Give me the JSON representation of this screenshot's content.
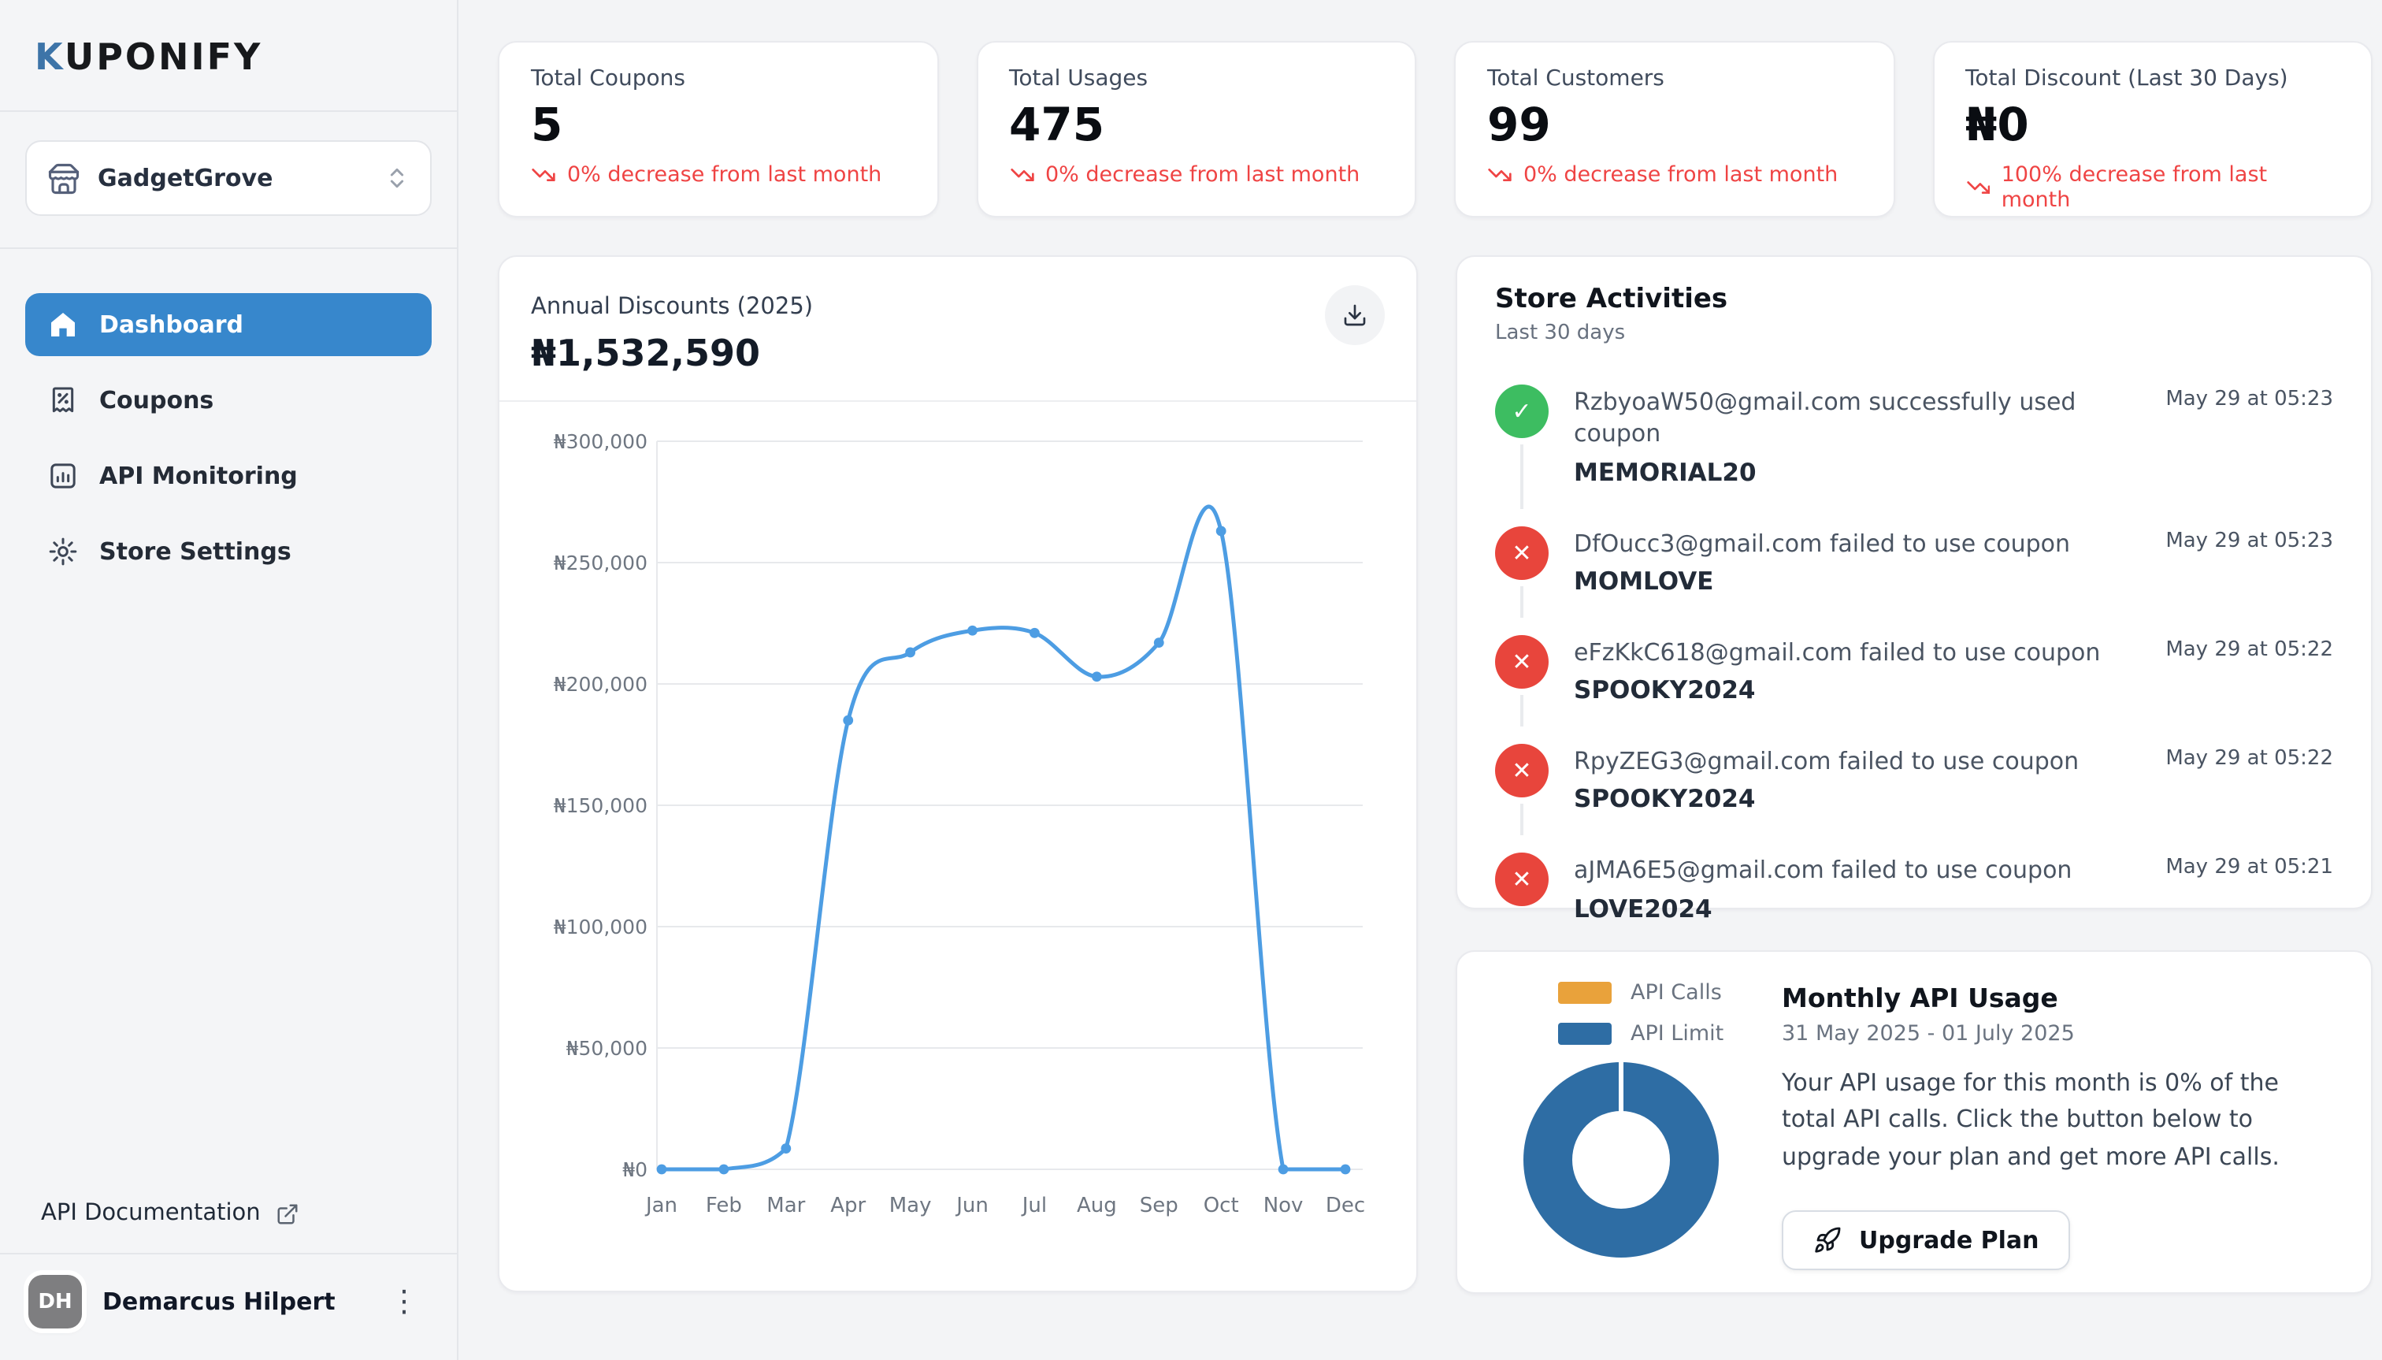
{
  "brand": {
    "logo_first": "K",
    "logo_rest": "UPONIFY"
  },
  "sidebar": {
    "store": {
      "name": "GadgetGrove"
    },
    "nav": [
      {
        "label": "Dashboard",
        "active": true
      },
      {
        "label": "Coupons",
        "active": false
      },
      {
        "label": "API Monitoring",
        "active": false
      },
      {
        "label": "Store Settings",
        "active": false
      }
    ],
    "api_docs_label": "API Documentation",
    "user": {
      "initials": "DH",
      "name": "Demarcus Hilpert"
    }
  },
  "stats": [
    {
      "label": "Total Coupons",
      "value": "5",
      "delta": "0% decrease from last month"
    },
    {
      "label": "Total Usages",
      "value": "475",
      "delta": "0% decrease from last month"
    },
    {
      "label": "Total Customers",
      "value": "99",
      "delta": "0% decrease from last month"
    },
    {
      "label": "Total Discount (Last 30 Days)",
      "value": "₦0",
      "delta": "100% decrease from last month"
    }
  ],
  "chart_card": {
    "title": "Annual Discounts (2025)",
    "total": "₦1,532,590"
  },
  "chart_data": {
    "type": "line",
    "title": "Annual Discounts (2025)",
    "x": [
      "Jan",
      "Feb",
      "Mar",
      "Apr",
      "May",
      "Jun",
      "Jul",
      "Aug",
      "Sep",
      "Oct",
      "Nov",
      "Dec"
    ],
    "series": [
      {
        "name": "Annual Discounts",
        "values": [
          0,
          0,
          8590,
          185000,
          213000,
          222000,
          221000,
          203000,
          217000,
          263000,
          0,
          0
        ]
      }
    ],
    "total_label": "₦1,532,590",
    "ylim": [
      0,
      300000
    ],
    "ytick_step": 50000,
    "ytick_prefix": "₦",
    "grid": true,
    "line_color": "#4D9DE3"
  },
  "activities": {
    "title": "Store Activities",
    "subtitle": "Last 30 days",
    "items": [
      {
        "status": "success",
        "text": "RzbyoaW50@gmail.com successfully used coupon",
        "code": "MEMORIAL20",
        "time": "May 29 at 05:23"
      },
      {
        "status": "fail",
        "text": "DfOucc3@gmail.com failed to use coupon",
        "code": "MOMLOVE",
        "time": "May 29 at 05:23"
      },
      {
        "status": "fail",
        "text": "eFzKkC618@gmail.com failed to use coupon",
        "code": "SPOOKY2024",
        "time": "May 29 at 05:22"
      },
      {
        "status": "fail",
        "text": "RpyZEG3@gmail.com failed to use coupon",
        "code": "SPOOKY2024",
        "time": "May 29 at 05:22"
      },
      {
        "status": "fail",
        "text": "aJMA6E5@gmail.com failed to use coupon",
        "code": "LOVE2024",
        "time": "May 29 at 05:21"
      }
    ]
  },
  "api_usage": {
    "title": "Monthly API Usage",
    "date_range": "31 May 2025 - 01 July 2025",
    "description": "Your API usage for this month is 0% of the total API calls. Click the button below to upgrade your plan and get more API calls.",
    "button_label": "Upgrade Plan",
    "usage_percent": 0,
    "legend": [
      {
        "label": "API Calls",
        "color": "#E9A23B"
      },
      {
        "label": "API Limit",
        "color": "#2E6DA4"
      }
    ]
  },
  "colors": {
    "accent_blue": "#3787CC",
    "chart_line": "#4D9DE3",
    "donut_blue": "#2E6DA4",
    "legend_orange": "#E9A23B",
    "success_green": "#3DBD61",
    "fail_red": "#E8453C",
    "delta_red": "#EF4444"
  }
}
